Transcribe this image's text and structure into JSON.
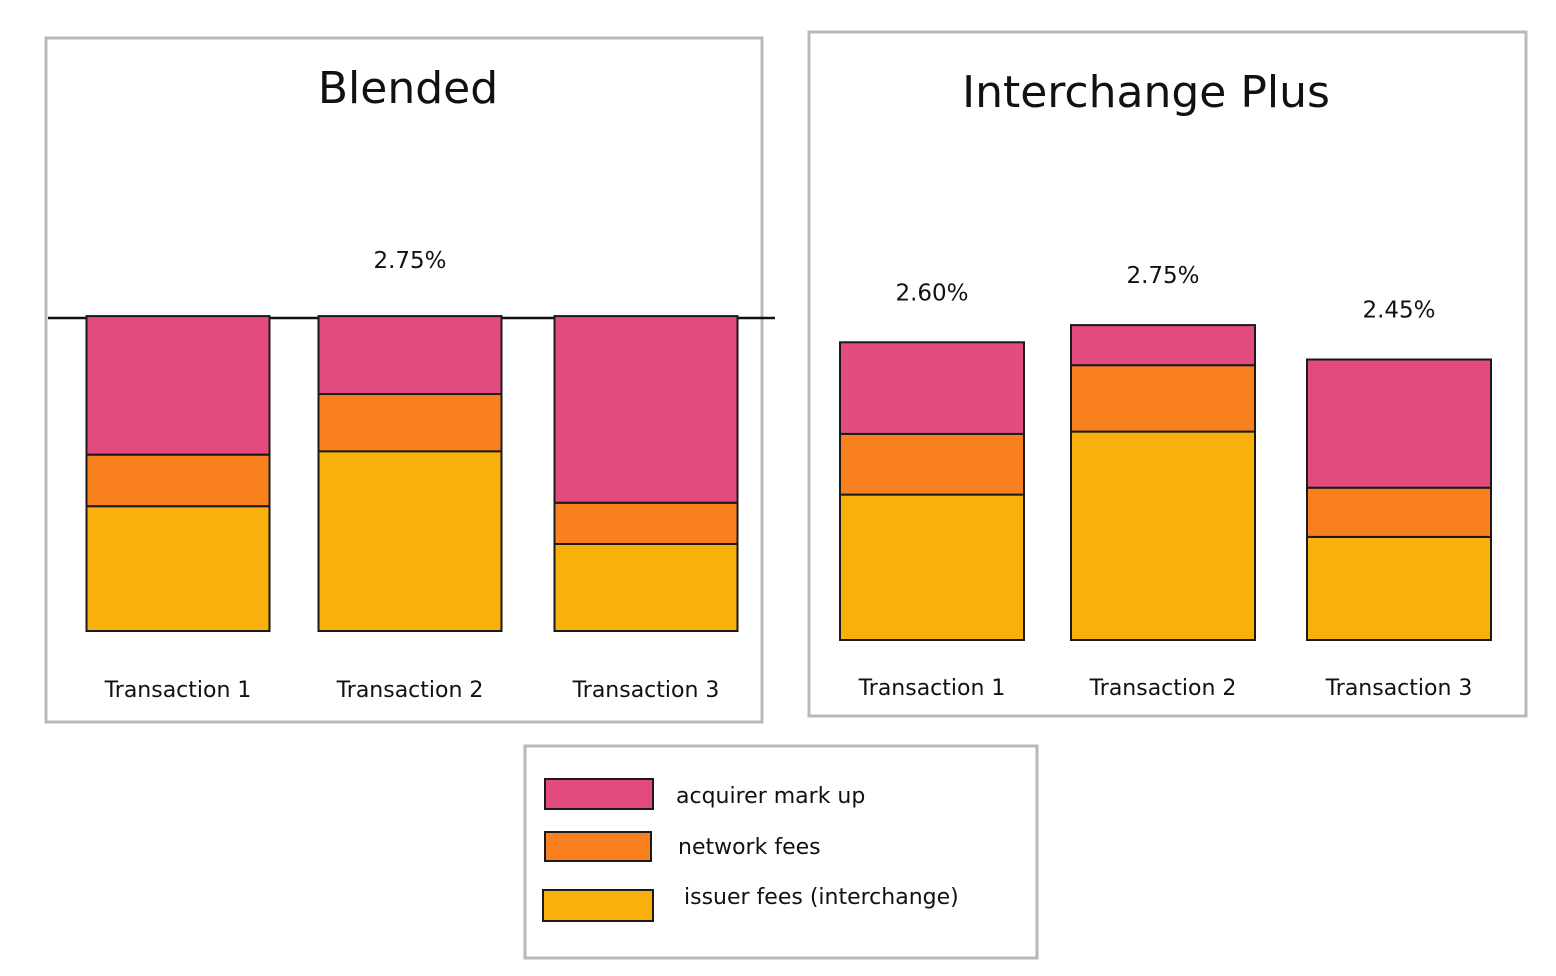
{
  "chart_data": [
    {
      "type": "bar",
      "stacked": true,
      "title": "Blended",
      "categories": [
        "Transaction 1",
        "Transaction 2",
        "Transaction 3"
      ],
      "series": [
        {
          "name": "issuer fees (interchange)",
          "values": [
            1.09,
            1.57,
            0.76
          ]
        },
        {
          "name": "network fees",
          "values": [
            0.45,
            0.5,
            0.36
          ]
        },
        {
          "name": "acquirer mark up",
          "values": [
            1.21,
            0.68,
            1.63
          ]
        }
      ],
      "totals": [
        2.75,
        2.75,
        2.75
      ],
      "total_labels": [
        "",
        "2.75%",
        ""
      ],
      "cap": 2.75,
      "ylim": [
        0,
        3.4
      ],
      "grid": false,
      "legend_position": "bottom-center"
    },
    {
      "type": "bar",
      "stacked": true,
      "title": "Interchange Plus",
      "categories": [
        "Transaction 1",
        "Transaction 2",
        "Transaction 3"
      ],
      "series": [
        {
          "name": "issuer fees (interchange)",
          "values": [
            1.27,
            1.82,
            0.9
          ]
        },
        {
          "name": "network fees",
          "values": [
            0.53,
            0.58,
            0.43
          ]
        },
        {
          "name": "acquirer mark up",
          "values": [
            0.8,
            0.35,
            1.12
          ]
        }
      ],
      "totals": [
        2.6,
        2.75,
        2.45
      ],
      "total_labels": [
        "2.60%",
        "2.75%",
        "2.45%"
      ],
      "ylim": [
        0,
        3.4
      ],
      "grid": false,
      "legend_position": "bottom-center"
    }
  ],
  "legend": [
    {
      "label": "acquirer mark up",
      "color": "#e34b7f"
    },
    {
      "label": "network fees",
      "color": "#f9801f"
    },
    {
      "label": "issuer fees (interchange)",
      "color": "#f9b00c"
    }
  ],
  "colors": {
    "acquirer_mark_up": "#e34b7f",
    "network_fees": "#f9801f",
    "issuer_fees": "#f9b00c"
  }
}
